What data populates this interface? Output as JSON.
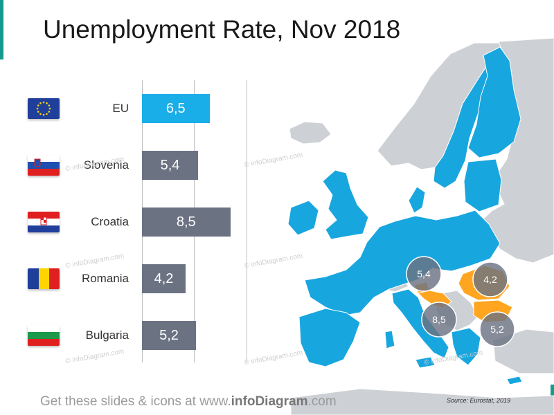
{
  "title": "Unemployment Rate, Nov 2018",
  "colors": {
    "eu_bar": "#1aaee8",
    "country_bar": "#6b7383",
    "eu_land": "#18a6df",
    "highlight_land": "#ffa51f",
    "other_land": "#cdd0d5",
    "bubble": "#6b7383",
    "accent": "#139b8e"
  },
  "chart_data": {
    "type": "bar",
    "orientation": "horizontal",
    "categories": [
      "EU",
      "Slovenia",
      "Croatia",
      "Romania",
      "Bulgaria"
    ],
    "values": [
      6.5,
      5.4,
      8.5,
      4.2,
      5.2
    ],
    "value_labels": [
      "6,5",
      "5,4",
      "8,5",
      "4,2",
      "5,2"
    ],
    "flag_icons": [
      "eu-flag-icon",
      "slovenia-flag-icon",
      "croatia-flag-icon",
      "romania-flag-icon",
      "bulgaria-flag-icon"
    ]
  },
  "map_bubbles": [
    {
      "country": "Slovenia",
      "label": "5,4"
    },
    {
      "country": "Romania",
      "label": "4,2"
    },
    {
      "country": "Croatia",
      "label": "8,5"
    },
    {
      "country": "Bulgaria",
      "label": "5,2"
    }
  ],
  "watermark_text": "© infoDiagram.com",
  "footer": {
    "prefix": "Get these slides & icons at www.",
    "brand": "infoDiagram",
    "suffix": ".com"
  },
  "source": "Source: Eurostat, 2019"
}
